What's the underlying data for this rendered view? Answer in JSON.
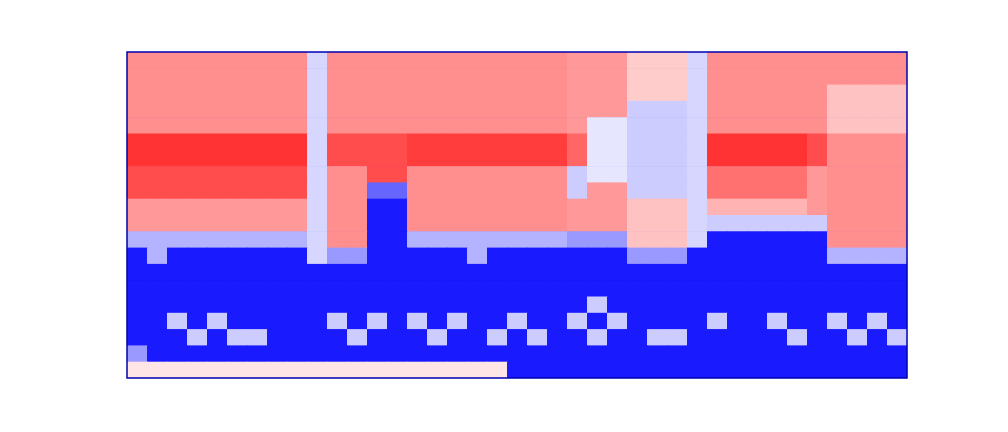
{
  "chart_data": {
    "type": "heatmap",
    "tick_labels": false,
    "clim": [
      0,
      1
    ],
    "cells": [
      [
        0.72,
        0.72,
        0.72,
        0.72,
        0.72,
        0.72,
        0.72,
        0.72,
        0.72,
        0.42,
        0.72,
        0.72,
        0.72,
        0.72,
        0.72,
        0.72,
        0.72,
        0.72,
        0.72,
        0.72,
        0.72,
        0.72,
        0.7,
        0.7,
        0.7,
        0.6,
        0.6,
        0.6,
        0.42,
        0.72,
        0.72,
        0.72,
        0.72,
        0.72,
        0.72,
        0.72,
        0.72,
        0.72,
        0.72
      ],
      [
        0.72,
        0.72,
        0.72,
        0.72,
        0.72,
        0.72,
        0.72,
        0.72,
        0.72,
        0.42,
        0.72,
        0.72,
        0.72,
        0.72,
        0.72,
        0.72,
        0.72,
        0.72,
        0.72,
        0.72,
        0.72,
        0.72,
        0.7,
        0.7,
        0.7,
        0.6,
        0.6,
        0.6,
        0.42,
        0.72,
        0.72,
        0.72,
        0.72,
        0.72,
        0.72,
        0.72,
        0.72,
        0.72,
        0.72
      ],
      [
        0.72,
        0.72,
        0.72,
        0.72,
        0.72,
        0.72,
        0.72,
        0.72,
        0.72,
        0.42,
        0.72,
        0.72,
        0.72,
        0.72,
        0.72,
        0.72,
        0.72,
        0.72,
        0.72,
        0.72,
        0.72,
        0.72,
        0.7,
        0.7,
        0.7,
        0.6,
        0.6,
        0.6,
        0.42,
        0.72,
        0.72,
        0.72,
        0.72,
        0.72,
        0.72,
        0.62,
        0.62,
        0.62,
        0.62
      ],
      [
        0.72,
        0.72,
        0.72,
        0.72,
        0.72,
        0.72,
        0.72,
        0.72,
        0.72,
        0.42,
        0.72,
        0.72,
        0.72,
        0.72,
        0.72,
        0.72,
        0.72,
        0.72,
        0.72,
        0.72,
        0.72,
        0.72,
        0.7,
        0.7,
        0.7,
        0.4,
        0.4,
        0.4,
        0.42,
        0.72,
        0.72,
        0.72,
        0.72,
        0.72,
        0.72,
        0.62,
        0.62,
        0.62,
        0.62
      ],
      [
        0.72,
        0.72,
        0.72,
        0.72,
        0.72,
        0.72,
        0.72,
        0.72,
        0.72,
        0.42,
        0.72,
        0.72,
        0.72,
        0.72,
        0.72,
        0.72,
        0.72,
        0.72,
        0.72,
        0.72,
        0.72,
        0.72,
        0.7,
        0.45,
        0.45,
        0.4,
        0.4,
        0.4,
        0.42,
        0.72,
        0.72,
        0.72,
        0.72,
        0.72,
        0.72,
        0.62,
        0.62,
        0.62,
        0.62
      ],
      [
        0.9,
        0.9,
        0.9,
        0.9,
        0.9,
        0.9,
        0.9,
        0.9,
        0.9,
        0.42,
        0.85,
        0.85,
        0.85,
        0.85,
        0.88,
        0.88,
        0.88,
        0.88,
        0.88,
        0.88,
        0.88,
        0.88,
        0.8,
        0.45,
        0.45,
        0.4,
        0.4,
        0.4,
        0.42,
        0.9,
        0.9,
        0.9,
        0.9,
        0.9,
        0.85,
        0.72,
        0.72,
        0.72,
        0.72
      ],
      [
        0.9,
        0.9,
        0.9,
        0.9,
        0.9,
        0.9,
        0.9,
        0.9,
        0.9,
        0.42,
        0.85,
        0.85,
        0.85,
        0.85,
        0.88,
        0.88,
        0.88,
        0.88,
        0.88,
        0.88,
        0.88,
        0.88,
        0.8,
        0.45,
        0.45,
        0.4,
        0.4,
        0.4,
        0.42,
        0.9,
        0.9,
        0.9,
        0.9,
        0.9,
        0.85,
        0.72,
        0.72,
        0.72,
        0.72
      ],
      [
        0.85,
        0.85,
        0.85,
        0.85,
        0.85,
        0.85,
        0.85,
        0.85,
        0.85,
        0.42,
        0.72,
        0.72,
        0.85,
        0.85,
        0.72,
        0.72,
        0.72,
        0.72,
        0.72,
        0.72,
        0.72,
        0.72,
        0.4,
        0.45,
        0.45,
        0.4,
        0.4,
        0.4,
        0.42,
        0.78,
        0.78,
        0.78,
        0.78,
        0.78,
        0.7,
        0.72,
        0.72,
        0.72,
        0.72
      ],
      [
        0.85,
        0.85,
        0.85,
        0.85,
        0.85,
        0.85,
        0.85,
        0.85,
        0.85,
        0.42,
        0.72,
        0.72,
        0.2,
        0.2,
        0.72,
        0.72,
        0.72,
        0.72,
        0.72,
        0.72,
        0.72,
        0.72,
        0.4,
        0.7,
        0.7,
        0.4,
        0.4,
        0.4,
        0.42,
        0.78,
        0.78,
        0.78,
        0.78,
        0.78,
        0.7,
        0.72,
        0.72,
        0.72,
        0.72
      ],
      [
        0.7,
        0.7,
        0.7,
        0.7,
        0.7,
        0.7,
        0.7,
        0.7,
        0.7,
        0.42,
        0.72,
        0.72,
        0.05,
        0.05,
        0.72,
        0.72,
        0.72,
        0.72,
        0.72,
        0.72,
        0.72,
        0.72,
        0.7,
        0.7,
        0.7,
        0.62,
        0.62,
        0.62,
        0.42,
        0.65,
        0.65,
        0.65,
        0.65,
        0.65,
        0.7,
        0.72,
        0.72,
        0.72,
        0.72
      ],
      [
        0.7,
        0.7,
        0.7,
        0.7,
        0.7,
        0.7,
        0.7,
        0.7,
        0.7,
        0.42,
        0.72,
        0.72,
        0.05,
        0.05,
        0.72,
        0.72,
        0.72,
        0.72,
        0.72,
        0.72,
        0.72,
        0.72,
        0.7,
        0.7,
        0.7,
        0.62,
        0.62,
        0.62,
        0.42,
        0.4,
        0.4,
        0.4,
        0.4,
        0.4,
        0.4,
        0.72,
        0.72,
        0.72,
        0.72
      ],
      [
        0.35,
        0.35,
        0.35,
        0.35,
        0.35,
        0.35,
        0.35,
        0.35,
        0.35,
        0.42,
        0.72,
        0.72,
        0.05,
        0.05,
        0.35,
        0.35,
        0.35,
        0.35,
        0.35,
        0.35,
        0.35,
        0.35,
        0.3,
        0.3,
        0.3,
        0.62,
        0.62,
        0.62,
        0.42,
        0.05,
        0.05,
        0.05,
        0.05,
        0.05,
        0.05,
        0.72,
        0.72,
        0.72,
        0.72
      ],
      [
        0.05,
        0.35,
        0.05,
        0.05,
        0.05,
        0.05,
        0.05,
        0.05,
        0.05,
        0.42,
        0.3,
        0.3,
        0.05,
        0.05,
        0.05,
        0.05,
        0.05,
        0.35,
        0.05,
        0.05,
        0.05,
        0.05,
        0.05,
        0.05,
        0.05,
        0.3,
        0.3,
        0.3,
        0.05,
        0.05,
        0.05,
        0.05,
        0.05,
        0.05,
        0.05,
        0.35,
        0.35,
        0.35,
        0.35
      ],
      [
        0.05,
        0.05,
        0.05,
        0.05,
        0.05,
        0.05,
        0.05,
        0.05,
        0.05,
        0.05,
        0.05,
        0.05,
        0.05,
        0.05,
        0.05,
        0.05,
        0.05,
        0.05,
        0.05,
        0.05,
        0.05,
        0.05,
        0.05,
        0.05,
        0.05,
        0.05,
        0.05,
        0.05,
        0.05,
        0.05,
        0.05,
        0.05,
        0.05,
        0.05,
        0.05,
        0.05,
        0.05,
        0.05,
        0.05
      ],
      [
        0.05,
        0.05,
        0.05,
        0.05,
        0.05,
        0.05,
        0.05,
        0.05,
        0.05,
        0.05,
        0.05,
        0.05,
        0.05,
        0.05,
        0.05,
        0.05,
        0.05,
        0.05,
        0.05,
        0.05,
        0.05,
        0.05,
        0.05,
        0.05,
        0.05,
        0.05,
        0.05,
        0.05,
        0.05,
        0.05,
        0.05,
        0.05,
        0.05,
        0.05,
        0.05,
        0.05,
        0.05,
        0.05,
        0.05
      ],
      [
        0.05,
        0.05,
        0.05,
        0.05,
        0.05,
        0.05,
        0.05,
        0.05,
        0.05,
        0.05,
        0.05,
        0.05,
        0.05,
        0.05,
        0.05,
        0.05,
        0.05,
        0.05,
        0.05,
        0.05,
        0.05,
        0.05,
        0.05,
        0.4,
        0.05,
        0.05,
        0.05,
        0.05,
        0.05,
        0.05,
        0.05,
        0.05,
        0.05,
        0.05,
        0.05,
        0.05,
        0.05,
        0.05,
        0.05
      ],
      [
        0.05,
        0.05,
        0.4,
        0.05,
        0.4,
        0.05,
        0.05,
        0.05,
        0.05,
        0.05,
        0.4,
        0.05,
        0.4,
        0.05,
        0.4,
        0.05,
        0.4,
        0.05,
        0.05,
        0.4,
        0.05,
        0.05,
        0.4,
        0.05,
        0.4,
        0.05,
        0.05,
        0.05,
        0.05,
        0.4,
        0.05,
        0.05,
        0.4,
        0.05,
        0.05,
        0.4,
        0.05,
        0.4,
        0.05
      ],
      [
        0.05,
        0.05,
        0.05,
        0.4,
        0.05,
        0.4,
        0.4,
        0.05,
        0.05,
        0.05,
        0.05,
        0.4,
        0.05,
        0.05,
        0.05,
        0.4,
        0.05,
        0.05,
        0.4,
        0.05,
        0.4,
        0.05,
        0.05,
        0.4,
        0.05,
        0.05,
        0.4,
        0.4,
        0.05,
        0.05,
        0.05,
        0.05,
        0.05,
        0.4,
        0.05,
        0.05,
        0.4,
        0.05,
        0.4
      ],
      [
        0.3,
        0.05,
        0.05,
        0.05,
        0.05,
        0.05,
        0.05,
        0.05,
        0.05,
        0.05,
        0.05,
        0.05,
        0.05,
        0.05,
        0.05,
        0.05,
        0.05,
        0.05,
        0.05,
        0.05,
        0.05,
        0.05,
        0.05,
        0.05,
        0.05,
        0.05,
        0.05,
        0.05,
        0.05,
        0.05,
        0.05,
        0.05,
        0.05,
        0.05,
        0.05,
        0.05,
        0.05,
        0.05,
        0.05
      ],
      [
        0.55,
        0.55,
        0.55,
        0.55,
        0.55,
        0.55,
        0.55,
        0.55,
        0.55,
        0.55,
        0.55,
        0.55,
        0.55,
        0.55,
        0.55,
        0.55,
        0.55,
        0.55,
        0.55,
        0.05,
        0.05,
        0.05,
        0.05,
        0.05,
        0.05,
        0.05,
        0.05,
        0.05,
        0.05,
        0.05,
        0.05,
        0.05,
        0.05,
        0.05,
        0.05,
        0.05,
        0.05,
        0.05,
        0.05
      ]
    ]
  }
}
